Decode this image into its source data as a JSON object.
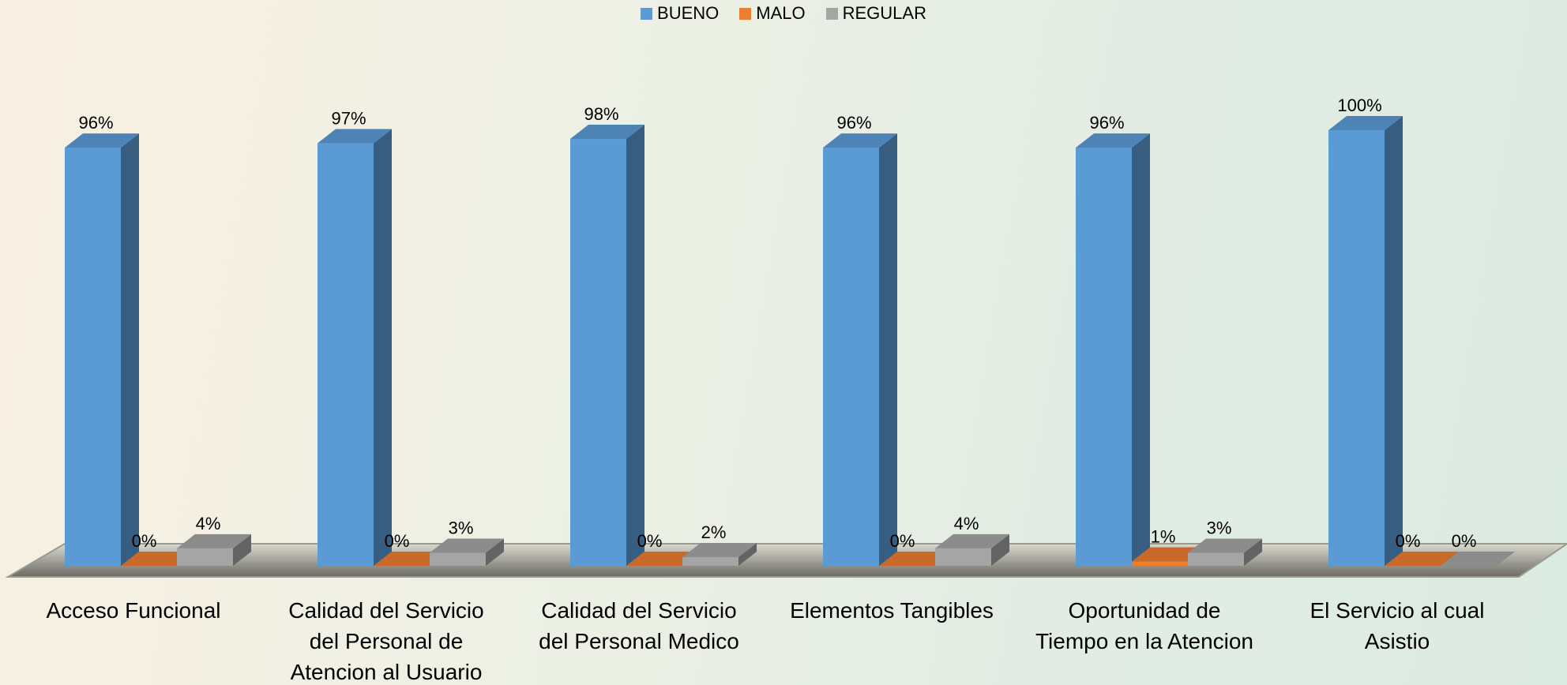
{
  "chart_data": {
    "type": "bar3d",
    "categories": [
      "Acceso Funcional",
      "Calidad del Servicio del Personal de Atencion al Usuario",
      "Calidad del Servicio del Personal Medico",
      "Elementos Tangibles",
      "Oportunidad de Tiempo en la Atencion",
      "El Servicio al cual Asistio"
    ],
    "series": [
      {
        "name": "BUENO",
        "color": "#5b9bd5",
        "values": [
          96,
          97,
          98,
          96,
          96,
          100
        ],
        "value_labels": [
          "96%",
          "97%",
          "98%",
          "96%",
          "96%",
          "100%"
        ]
      },
      {
        "name": "MALO",
        "color": "#ed7d31",
        "values": [
          0,
          0,
          0,
          0,
          1,
          0
        ],
        "value_labels": [
          "0%",
          "0%",
          "0%",
          "0%",
          "1%",
          "0%"
        ]
      },
      {
        "name": "REGULAR",
        "color": "#a5a5a5",
        "values": [
          4,
          3,
          2,
          4,
          3,
          0
        ],
        "value_labels": [
          "4%",
          "3%",
          "2%",
          "4%",
          "3%",
          "0%"
        ]
      }
    ],
    "legend": "top"
  }
}
